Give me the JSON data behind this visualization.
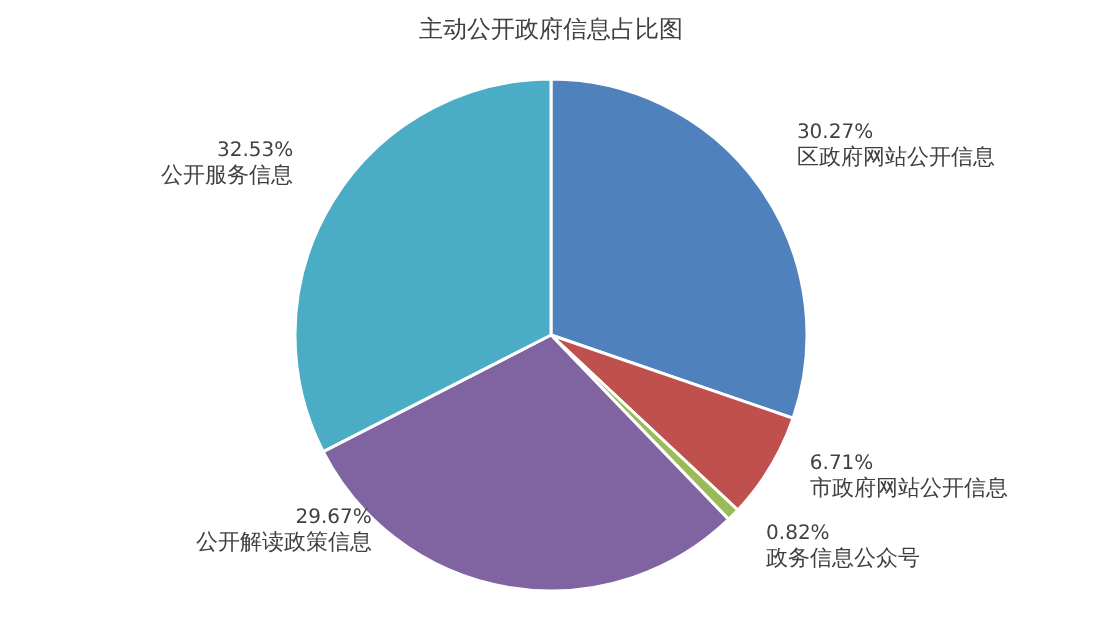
{
  "chart_data": {
    "type": "pie",
    "title": "主动公开政府信息占比图",
    "categories": [
      "区政府网站公开信息",
      "市政府网站公开信息",
      "政务信息公众号",
      "公开解读政策信息",
      "公开服务信息"
    ],
    "values": [
      30.27,
      6.71,
      0.82,
      29.67,
      32.53
    ],
    "colors": [
      "#4f81bd",
      "#c0504d",
      "#9bbb59",
      "#8064a2",
      "#4bacc6"
    ],
    "value_labels": [
      "30.27%",
      "6.71%",
      "0.82%",
      "29.67%",
      "32.53%"
    ]
  }
}
